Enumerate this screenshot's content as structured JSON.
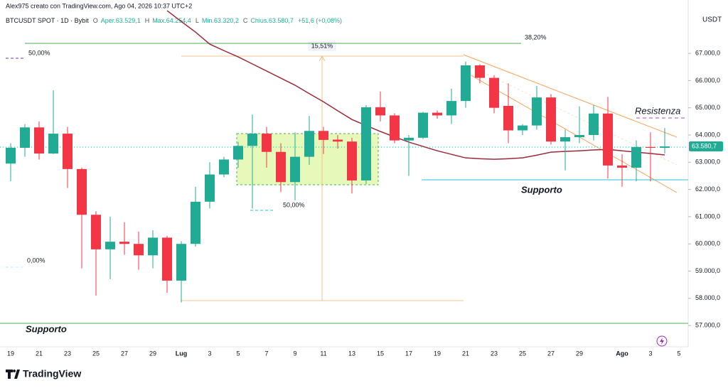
{
  "header": {
    "author": "Alex975 creato con TradingView.com, Ago 04, 2026 10:37 UTC+2",
    "symbol": "BTCUSDT SPOT · 1D · Bybit",
    "ohlc": [
      {
        "key": "O",
        "value": "Aper.63.529,1"
      },
      {
        "key": "H",
        "value": "Max.64.254,4"
      },
      {
        "key": "L",
        "value": "Min.63.320,2"
      },
      {
        "key": "C",
        "value": "Chius.63.580,7"
      }
    ],
    "change": "+51,6 (+0,08%)",
    "brand": "TradingView"
  },
  "chart_data": {
    "type": "candlestick",
    "axis_unit": "USDT",
    "categories": [
      "19",
      null,
      "21",
      null,
      "23",
      null,
      "25",
      null,
      "27",
      null,
      "29",
      null,
      "Lug",
      null,
      "3",
      null,
      "5",
      null,
      "7",
      null,
      "9",
      null,
      "11",
      null,
      "13",
      null,
      "15",
      null,
      "17",
      null,
      "19",
      null,
      "21",
      null,
      "23",
      null,
      "25",
      null,
      "27",
      null,
      "29",
      null,
      null,
      "Ago",
      null,
      "3",
      null,
      "5"
    ],
    "open": [
      62950,
      63530,
      64280,
      63320,
      64050,
      62750,
      61070,
      59800,
      60080,
      60000,
      59580,
      60230,
      58650,
      60000,
      61550,
      62550,
      63100,
      63600,
      64050,
      63380,
      62270,
      63200,
      64150,
      63830,
      63760,
      62330,
      65020,
      64720,
      63800,
      63900,
      64820,
      64720,
      65250,
      66560,
      66100,
      65070,
      64170,
      64350,
      65380,
      63760,
      63920,
      64000,
      64790,
      62880,
      62800,
      63560,
      63529.1,
      null
    ],
    "high": [
      63700,
      64400,
      64500,
      65640,
      64300,
      62800,
      61200,
      61000,
      60800,
      60450,
      60500,
      60300,
      60100,
      62100,
      63000,
      63200,
      63750,
      64750,
      64300,
      63700,
      64100,
      64700,
      64300,
      64000,
      63900,
      65100,
      65600,
      64800,
      64000,
      64850,
      64900,
      65700,
      66700,
      66600,
      66200,
      65900,
      64400,
      65800,
      65500,
      64200,
      65050,
      65100,
      65400,
      63300,
      63800,
      64100,
      64254.4,
      null
    ],
    "low": [
      62300,
      63200,
      63100,
      63300,
      62050,
      59100,
      58100,
      58700,
      59600,
      59050,
      59100,
      58200,
      57850,
      59900,
      61300,
      62450,
      62800,
      61300,
      62800,
      61900,
      61600,
      62900,
      63300,
      63500,
      61850,
      62200,
      64500,
      63700,
      62500,
      63850,
      64600,
      64400,
      65000,
      65900,
      64800,
      63700,
      64000,
      64200,
      63650,
      62700,
      63700,
      63800,
      62400,
      62100,
      62300,
      62300,
      63320.2,
      null
    ],
    "close": [
      63530,
      64280,
      63320,
      64050,
      62750,
      61070,
      59800,
      60080,
      60000,
      59580,
      60230,
      58650,
      60000,
      61550,
      62550,
      63100,
      63600,
      64050,
      63380,
      62270,
      63200,
      64150,
      63820,
      63760,
      62330,
      65020,
      64720,
      63800,
      63900,
      64820,
      64720,
      65250,
      66560,
      66100,
      65000,
      64170,
      64350,
      65380,
      63760,
      63920,
      64000,
      64790,
      62880,
      62800,
      63560,
      63529.1,
      63580.7,
      null
    ],
    "up_color": "#22ab94",
    "down_color": "#f23645",
    "ma": {
      "color": "#9c2a3a",
      "values": [
        null,
        null,
        null,
        null,
        null,
        null,
        null,
        null,
        null,
        null,
        null,
        68570,
        68170,
        67780,
        67340,
        67100,
        66870,
        66610,
        66350,
        66090,
        65830,
        65520,
        65220,
        64890,
        64570,
        64350,
        64130,
        63930,
        63740,
        63580,
        63420,
        63290,
        63160,
        63130,
        63110,
        63130,
        63160,
        63260,
        63370,
        63400,
        63420,
        63450,
        63470,
        63420,
        63370,
        63320,
        63270,
        null
      ]
    },
    "price_label": {
      "value": 63580.7,
      "label": "63.580,7"
    },
    "ylim": [
      56220,
      68960
    ],
    "yticks": [
      {
        "value": 57000,
        "label": "57.000,0"
      },
      {
        "value": 58000,
        "label": "58.000,0"
      },
      {
        "value": 59000,
        "label": "59.000,0"
      },
      {
        "value": 60000,
        "label": "60.000,0"
      },
      {
        "value": 61000,
        "label": "61.000,0"
      },
      {
        "value": 62000,
        "label": "62.000,0"
      },
      {
        "value": 63000,
        "label": "63.000,0"
      },
      {
        "value": 64000,
        "label": "64.000,0"
      },
      {
        "value": 65000,
        "label": "65.000,0"
      },
      {
        "value": 66000,
        "label": "66.000,0"
      },
      {
        "value": 67000,
        "label": "67.000,0"
      }
    ],
    "annotations": {
      "fib_top": "38,20%",
      "fib_mid": "50,00%",
      "fib_zero": "0,00%",
      "range": "15,51%",
      "box_mid": "50,00%",
      "resistance": "Resistenza",
      "support_high": "Supporto",
      "support_low": "Supporto"
    }
  }
}
